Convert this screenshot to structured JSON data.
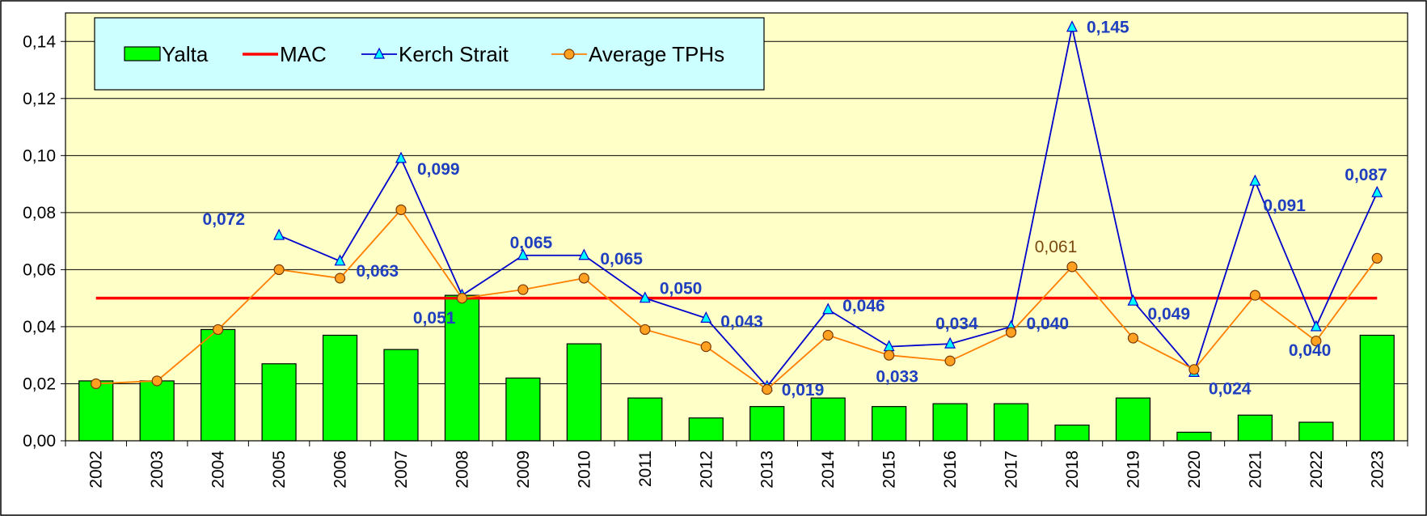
{
  "chart_data": {
    "type": "bar",
    "title": "",
    "xlabel": "",
    "ylabel": "",
    "ylim": [
      0,
      0.15
    ],
    "yticks": [
      0.0,
      0.02,
      0.04,
      0.06,
      0.08,
      0.1,
      0.12,
      0.14
    ],
    "ytick_labels": [
      "0,00",
      "0,02",
      "0,04",
      "0,06",
      "0,08",
      "0,10",
      "0,12",
      "0,14"
    ],
    "grid": true,
    "legend_position": "top-left",
    "categories": [
      "2002",
      "2003",
      "2004",
      "2005",
      "2006",
      "2007",
      "2008",
      "2009",
      "2010",
      "2011",
      "2012",
      "2013",
      "2014",
      "2015",
      "2016",
      "2017",
      "2018",
      "2019",
      "2020",
      "2021",
      "2022",
      "2023"
    ],
    "series": [
      {
        "name": "Yalta",
        "kind": "bar",
        "color": "#00ff00",
        "values": [
          0.021,
          0.021,
          0.039,
          0.027,
          0.037,
          0.032,
          0.051,
          0.022,
          0.034,
          0.015,
          0.008,
          0.012,
          0.015,
          0.012,
          0.013,
          0.013,
          0.0055,
          0.015,
          0.003,
          0.009,
          0.0065,
          0.037
        ]
      },
      {
        "name": "MAC",
        "kind": "line",
        "color": "#ff0000",
        "values": [
          0.05,
          0.05,
          0.05,
          0.05,
          0.05,
          0.05,
          0.05,
          0.05,
          0.05,
          0.05,
          0.05,
          0.05,
          0.05,
          0.05,
          0.05,
          0.05,
          0.05,
          0.05,
          0.05,
          0.05,
          0.05,
          0.05
        ]
      },
      {
        "name": "Kerch Strait",
        "kind": "line",
        "marker": "triangle",
        "color": "#0000cc",
        "marker_color": "#00ffff",
        "values": [
          null,
          null,
          null,
          0.072,
          0.063,
          0.099,
          0.051,
          0.065,
          0.065,
          0.05,
          0.043,
          0.019,
          0.046,
          0.033,
          0.034,
          0.04,
          0.145,
          0.049,
          0.024,
          0.091,
          0.04,
          0.087
        ],
        "labels": [
          "",
          "",
          "",
          "0,072",
          "0,063",
          "0,099",
          "0,051",
          "0,065",
          "0,065",
          "0,050",
          "0,043",
          "0,019",
          "0,046",
          "0,033",
          "0,034",
          "0,040",
          "0,145",
          "0,049",
          "0,024",
          "0,091",
          "0,040",
          "0,087"
        ],
        "label_color": "#1f3fbf"
      },
      {
        "name": "Average TPHs",
        "kind": "line",
        "marker": "circle",
        "color": "#ff7f00",
        "marker_color": "#ffa020",
        "values": [
          0.02,
          0.021,
          0.039,
          0.06,
          0.057,
          0.081,
          0.05,
          0.053,
          0.057,
          0.039,
          0.033,
          0.018,
          0.037,
          0.03,
          0.028,
          0.038,
          0.061,
          0.036,
          0.025,
          0.051,
          0.035,
          0.064
        ],
        "labels": [
          "",
          "",
          "",
          "",
          "",
          "",
          "",
          "",
          "",
          "",
          "",
          "",
          "",
          "",
          "",
          "",
          "0,061",
          "",
          "",
          "",
          "",
          ""
        ],
        "label_color": "#7a4a10"
      }
    ],
    "colors": {
      "plot_background": "#ffffc8",
      "legend_background": "#ccffff",
      "gridline": "#000000"
    }
  }
}
